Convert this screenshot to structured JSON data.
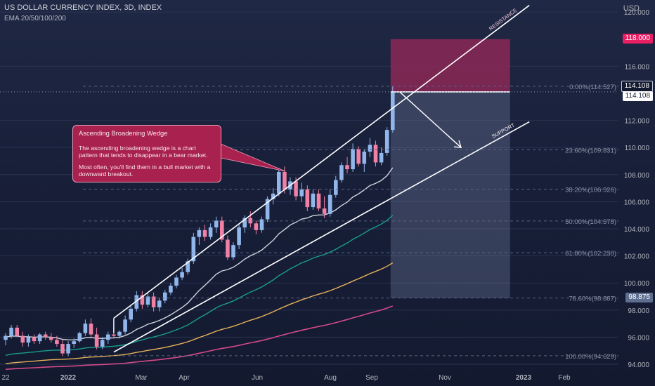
{
  "header": {
    "title": "US DOLLAR CURRENCY INDEX, 3D, INDEX",
    "indicator": "EMA 20/50/100/200"
  },
  "axis": {
    "currency": "USD"
  },
  "callout": {
    "title": "Ascending Broadening Wedge",
    "body1": "The ascending broadening wedge is a chart pattern that tends to disappear in a bear market.",
    "body2": "Most often, you'll find them in a bull market with a downward breakout."
  },
  "badges": {
    "target": "118.000",
    "last1": "114.108",
    "last2": "114.108",
    "stop": "98.875"
  },
  "colors": {
    "bull": "#90b6ec",
    "bear": "#f080a6",
    "ema20": "#cfd4de",
    "ema50": "#1a9e8a",
    "ema100": "#e8b25a",
    "ema200": "#d44a8a",
    "target_zone": "#a0285a",
    "stop_zone": "#8090b0",
    "callout_bg": "#a8214f",
    "target_badge": "#e91e63",
    "stop_badge": "#5d6e91"
  },
  "chart_data": {
    "type": "candlestick",
    "title": "US DOLLAR CURRENCY INDEX, 3D, INDEX",
    "ylim": [
      93.5,
      121
    ],
    "y_ticks": [
      "94.000",
      "96.000",
      "98.000",
      "100.000",
      "102.000",
      "104.000",
      "106.000",
      "108.000",
      "110.000",
      "112.000",
      "116.000",
      "120.000"
    ],
    "x_ticks": [
      "22",
      "2022",
      "Mar",
      "Apr",
      "Jun",
      "Aug",
      "Sep",
      "Nov",
      "2023",
      "Feb"
    ],
    "candles": [
      [
        95.8,
        96.3,
        95.4,
        96.1
      ],
      [
        96.1,
        96.9,
        95.9,
        96.7
      ],
      [
        96.7,
        96.9,
        96.0,
        96.1
      ],
      [
        96.1,
        96.4,
        95.3,
        95.6
      ],
      [
        95.6,
        96.2,
        95.3,
        96.0
      ],
      [
        96.0,
        96.2,
        95.5,
        95.7
      ],
      [
        95.7,
        96.3,
        95.5,
        96.2
      ],
      [
        96.2,
        96.4,
        95.8,
        96.0
      ],
      [
        96.0,
        96.3,
        95.6,
        95.8
      ],
      [
        95.8,
        96.1,
        95.3,
        95.5
      ],
      [
        95.5,
        95.8,
        94.6,
        94.8
      ],
      [
        94.8,
        95.7,
        94.6,
        95.5
      ],
      [
        95.5,
        95.9,
        95.2,
        95.7
      ],
      [
        95.7,
        96.4,
        95.6,
        96.3
      ],
      [
        96.3,
        97.3,
        96.1,
        97.0
      ],
      [
        97.0,
        97.4,
        96.0,
        96.2
      ],
      [
        96.2,
        96.7,
        95.1,
        95.3
      ],
      [
        95.3,
        96.0,
        95.1,
        95.8
      ],
      [
        95.8,
        96.4,
        95.5,
        96.2
      ],
      [
        96.2,
        96.6,
        95.9,
        96.1
      ],
      [
        96.1,
        96.5,
        95.9,
        96.4
      ],
      [
        96.4,
        97.6,
        96.2,
        97.3
      ],
      [
        97.3,
        98.3,
        97.1,
        98.1
      ],
      [
        98.1,
        99.4,
        97.9,
        99.1
      ],
      [
        99.1,
        99.4,
        98.1,
        98.4
      ],
      [
        98.4,
        99.3,
        98.2,
        99.0
      ],
      [
        99.0,
        99.3,
        97.9,
        98.2
      ],
      [
        98.2,
        98.9,
        97.9,
        98.7
      ],
      [
        98.7,
        99.5,
        98.5,
        99.3
      ],
      [
        99.3,
        100.0,
        99.1,
        99.8
      ],
      [
        99.8,
        100.6,
        99.6,
        100.4
      ],
      [
        100.4,
        101.1,
        100.2,
        100.8
      ],
      [
        100.8,
        101.8,
        100.6,
        101.6
      ],
      [
        101.6,
        103.7,
        101.4,
        103.4
      ],
      [
        103.4,
        104.1,
        102.8,
        103.9
      ],
      [
        103.9,
        104.3,
        103.1,
        103.4
      ],
      [
        103.4,
        104.4,
        103.2,
        104.1
      ],
      [
        104.1,
        104.9,
        103.7,
        104.6
      ],
      [
        104.6,
        104.9,
        103.0,
        103.2
      ],
      [
        103.2,
        103.5,
        101.7,
        101.9
      ],
      [
        101.9,
        103.0,
        101.7,
        102.8
      ],
      [
        102.8,
        104.3,
        102.5,
        104.1
      ],
      [
        104.1,
        105.0,
        103.7,
        104.8
      ],
      [
        104.8,
        105.3,
        104.1,
        104.4
      ],
      [
        104.4,
        104.6,
        103.6,
        103.9
      ],
      [
        103.9,
        104.9,
        103.7,
        104.7
      ],
      [
        104.7,
        106.4,
        104.5,
        106.2
      ],
      [
        106.2,
        107.0,
        105.8,
        106.6
      ],
      [
        106.6,
        108.5,
        106.4,
        108.2
      ],
      [
        108.2,
        108.6,
        106.6,
        106.9
      ],
      [
        106.9,
        107.8,
        106.5,
        107.5
      ],
      [
        107.5,
        107.8,
        106.1,
        106.4
      ],
      [
        106.4,
        107.4,
        106.0,
        106.9
      ],
      [
        106.9,
        107.2,
        105.3,
        105.6
      ],
      [
        105.6,
        106.9,
        105.4,
        106.6
      ],
      [
        106.6,
        106.9,
        105.3,
        105.5
      ],
      [
        105.5,
        106.4,
        104.8,
        105.1
      ],
      [
        105.1,
        106.9,
        104.9,
        106.5
      ],
      [
        106.5,
        107.9,
        106.3,
        107.6
      ],
      [
        107.6,
        108.9,
        107.4,
        108.7
      ],
      [
        108.7,
        109.3,
        108.1,
        108.4
      ],
      [
        108.4,
        110.3,
        108.2,
        109.9
      ],
      [
        109.9,
        110.1,
        108.6,
        108.8
      ],
      [
        108.8,
        109.9,
        108.2,
        109.7
      ],
      [
        109.7,
        110.7,
        109.3,
        110.2
      ],
      [
        110.2,
        110.5,
        108.6,
        108.9
      ],
      [
        108.9,
        110.0,
        108.7,
        109.6
      ],
      [
        109.6,
        111.5,
        109.4,
        111.3
      ],
      [
        111.3,
        114.5,
        111.1,
        114.1
      ]
    ],
    "fibonacci_levels": [
      {
        "label": "0.00%(114.527)",
        "value": 114.527
      },
      {
        "label": "23.60%(109.831)",
        "value": 109.831
      },
      {
        "label": "38.20%(106.926)",
        "value": 106.926
      },
      {
        "label": "50.00%(104.578)",
        "value": 104.578
      },
      {
        "label": "61.80%(102.230)",
        "value": 102.23
      },
      {
        "label": "78.60%(98.887)",
        "value": 98.887
      },
      {
        "label": "100.00%(94.629)",
        "value": 94.629
      }
    ],
    "trendlines": [
      {
        "label": "RESISTANCE",
        "from": [
          19,
          97.4
        ],
        "to": [
          92,
          120.5
        ]
      },
      {
        "label": "SUPPORT",
        "from": [
          19,
          94.9
        ],
        "to": [
          92,
          111.9
        ]
      }
    ],
    "position": {
      "entry": 114.108,
      "target": 118.0,
      "stop": 98.875,
      "start_bar": 68,
      "end_bar": 88
    },
    "projection_arrow": {
      "from": [
        69,
        114.1
      ],
      "to": [
        80,
        110.0
      ]
    }
  }
}
